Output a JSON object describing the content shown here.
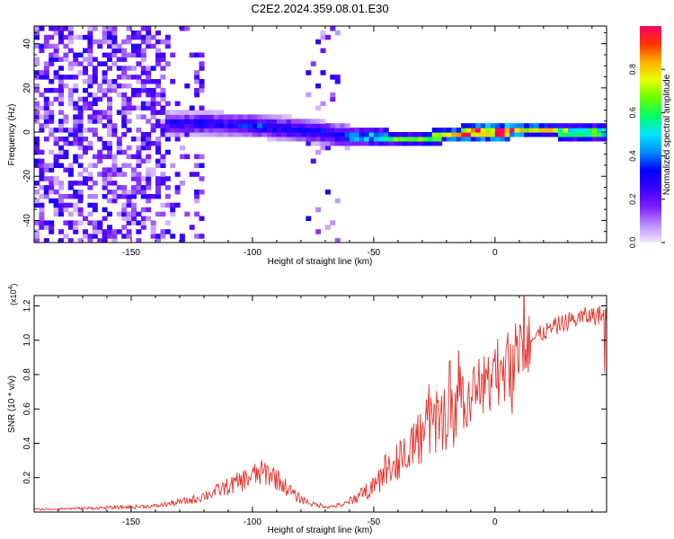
{
  "figure_title": "C2E2.2024.359.08.01.E30",
  "chart_data": [
    {
      "type": "heatmap",
      "title": "C2E2.2024.359.08.01.E30",
      "xlabel": "Height of straight line (km)",
      "ylabel": "Frequency (Hz)",
      "xlim": [
        -190,
        46
      ],
      "ylim": [
        -50,
        48
      ],
      "x_ticks": [
        -150,
        -100,
        -50,
        0
      ],
      "y_ticks": [
        -40,
        -20,
        0,
        20,
        40
      ],
      "colorbar": {
        "label": "Normalized spectral amplitude",
        "range": [
          0,
          1
        ],
        "ticks": [
          "0.0",
          "0.2",
          "0.4",
          "0.6",
          "0.8"
        ],
        "colors": [
          "#f2e6ff",
          "#b98cff",
          "#7a1cff",
          "#3b00ff",
          "#0000ff",
          "#008cff",
          "#00e5ff",
          "#00ff66",
          "#66ff00",
          "#e6ff00",
          "#ffb300",
          "#ff3300",
          "#ff0066"
        ]
      },
      "ridge": {
        "x": [
          -135,
          -120,
          -100,
          -80,
          -60,
          -50,
          -40,
          -30,
          -20,
          -10,
          0,
          10,
          20,
          30,
          46
        ],
        "frequency": [
          4,
          4,
          3,
          1,
          -2,
          -2,
          -3,
          -3,
          -1,
          0,
          0,
          1,
          1,
          0,
          0
        ],
        "amplitude": [
          0.3,
          0.32,
          0.35,
          0.35,
          0.4,
          0.5,
          0.6,
          0.7,
          0.78,
          0.85,
          0.95,
          0.85,
          0.75,
          0.6,
          0.55
        ]
      },
      "noise_regions": [
        {
          "x_range": [
            -190,
            -135
          ],
          "level": "dense"
        },
        {
          "x_range": [
            -135,
            -120
          ],
          "level": "moderate"
        },
        {
          "x_range": [
            -78,
            -65
          ],
          "level": "sparse"
        }
      ]
    },
    {
      "type": "line",
      "xlabel": "Height of straight line (km)",
      "ylabel": "SNR (10 * v/v)",
      "y_multiplier": "(x10",
      "y_multiplier_exp": "4",
      "xlim": [
        -190,
        46
      ],
      "ylim": [
        0,
        12600
      ],
      "x_ticks": [
        -150,
        -100,
        -50,
        0
      ],
      "y_ticks": [
        "0.2",
        "0.4",
        "0.6",
        "0.8",
        "1.0",
        "1.2"
      ],
      "series": [
        {
          "color": "#e8312b",
          "x": [
            -190,
            -160,
            -140,
            -125,
            -115,
            -108,
            -100,
            -95,
            -92,
            -88,
            -82,
            -75,
            -68,
            -62,
            -58,
            -54,
            -50,
            -45,
            -40,
            -35,
            -30,
            -25,
            -20,
            -15,
            -10,
            -5,
            0,
            5,
            10,
            13,
            18,
            25,
            30,
            38,
            46
          ],
          "y": [
            150,
            250,
            350,
            700,
            1200,
            1600,
            2100,
            2300,
            2200,
            1700,
            900,
            450,
            300,
            450,
            800,
            1100,
            1600,
            2300,
            3100,
            3800,
            4500,
            5200,
            5600,
            6200,
            6800,
            7400,
            8000,
            8600,
            9200,
            9800,
            10300,
            10800,
            11100,
            11400,
            11500
          ]
        }
      ]
    }
  ]
}
